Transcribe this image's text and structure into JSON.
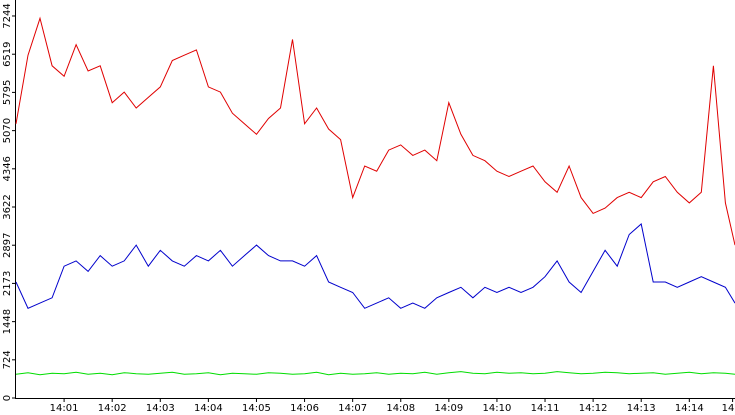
{
  "chart_data": {
    "type": "line",
    "x": [
      0,
      0.25,
      0.5,
      0.75,
      1,
      1.25,
      1.5,
      1.75,
      2,
      2.25,
      2.5,
      2.75,
      3,
      3.25,
      3.5,
      3.75,
      4,
      4.25,
      4.5,
      4.75,
      5,
      5.25,
      5.5,
      5.75,
      6,
      6.25,
      6.5,
      6.75,
      7,
      7.25,
      7.5,
      7.75,
      8,
      8.25,
      8.5,
      8.75,
      9,
      9.25,
      9.5,
      9.75,
      10,
      10.25,
      10.5,
      10.75,
      11,
      11.25,
      11.5,
      11.75,
      12,
      12.25,
      12.5,
      12.75,
      13,
      13.25,
      13.5,
      13.75,
      14,
      14.25,
      14.5,
      14.75,
      14.95
    ],
    "series": [
      {
        "color": "#e00000",
        "values": [
          5200,
          6500,
          7200,
          6300,
          6100,
          6700,
          6200,
          6300,
          5600,
          5800,
          5500,
          5700,
          5900,
          6400,
          6500,
          6600,
          5900,
          5800,
          5400,
          5200,
          5000,
          5300,
          5500,
          6800,
          5200,
          5500,
          5100,
          4900,
          3800,
          4400,
          4300,
          4700,
          4800,
          4600,
          4700,
          4500,
          5600,
          5000,
          4600,
          4500,
          4300,
          4200,
          4300,
          4400,
          4100,
          3900,
          4400,
          3800,
          3500,
          3600,
          3800,
          3900,
          3800,
          4100,
          4200,
          3900,
          3700,
          3900,
          6300,
          3700,
          2900
        ]
      },
      {
        "color": "#0000cc",
        "values": [
          2200,
          1700,
          1800,
          1900,
          2500,
          2600,
          2400,
          2700,
          2500,
          2600,
          2900,
          2500,
          2800,
          2600,
          2500,
          2700,
          2600,
          2800,
          2500,
          2700,
          2900,
          2700,
          2600,
          2600,
          2500,
          2700,
          2200,
          2100,
          2000,
          1700,
          1800,
          1900,
          1700,
          1800,
          1700,
          1900,
          2000,
          2100,
          1900,
          2100,
          2000,
          2100,
          2000,
          2100,
          2300,
          2600,
          2200,
          2000,
          2400,
          2800,
          2500,
          3100,
          3300,
          2200,
          2200,
          2100,
          2200,
          2300,
          2200,
          2100,
          1800
        ]
      },
      {
        "color": "#00dd00",
        "values": [
          450,
          480,
          440,
          470,
          460,
          490,
          450,
          470,
          440,
          480,
          460,
          450,
          470,
          490,
          450,
          460,
          480,
          440,
          470,
          460,
          450,
          480,
          470,
          450,
          460,
          490,
          440,
          470,
          450,
          460,
          480,
          450,
          470,
          460,
          490,
          450,
          480,
          500,
          470,
          460,
          490,
          470,
          480,
          460,
          470,
          500,
          480,
          460,
          470,
          490,
          480,
          460,
          470,
          480,
          450,
          470,
          490,
          460,
          480,
          470,
          450
        ]
      }
    ],
    "xlim": [
      0,
      14.95
    ],
    "xticks": [
      {
        "value": 1,
        "label": "14:01"
      },
      {
        "value": 2,
        "label": "14:02"
      },
      {
        "value": 3,
        "label": "14:03"
      },
      {
        "value": 4,
        "label": "14:04"
      },
      {
        "value": 5,
        "label": "14:05"
      },
      {
        "value": 6,
        "label": "14:06"
      },
      {
        "value": 7,
        "label": "14:07"
      },
      {
        "value": 8,
        "label": "14:08"
      },
      {
        "value": 9,
        "label": "14:09"
      },
      {
        "value": 10,
        "label": "14:10"
      },
      {
        "value": 11,
        "label": "14:11"
      },
      {
        "value": 12,
        "label": "14:12"
      },
      {
        "value": 13,
        "label": "14:13"
      },
      {
        "value": 14,
        "label": "14:14"
      },
      {
        "value": 14.9,
        "label": "14"
      }
    ],
    "ylim": [
      0,
      7547
    ],
    "yticks": [
      0,
      724,
      1448,
      2173,
      2897,
      3622,
      4346,
      5070,
      5795,
      6519,
      7244
    ]
  }
}
